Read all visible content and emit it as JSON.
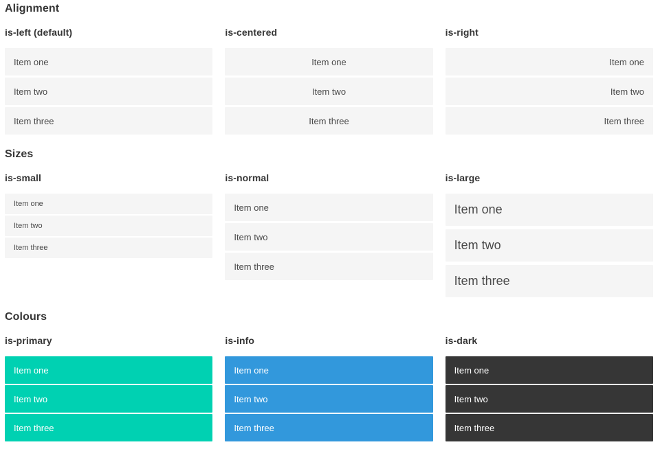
{
  "sections": [
    {
      "title": "Alignment",
      "groups": [
        {
          "label": "is-left (default)",
          "variant": "left",
          "items": [
            "Item one",
            "Item two",
            "Item three"
          ]
        },
        {
          "label": "is-centered",
          "variant": "centered",
          "items": [
            "Item one",
            "Item two",
            "Item three"
          ]
        },
        {
          "label": "is-right",
          "variant": "right",
          "items": [
            "Item one",
            "Item two",
            "Item three"
          ]
        }
      ]
    },
    {
      "title": "Sizes",
      "groups": [
        {
          "label": "is-small",
          "variant": "small",
          "items": [
            "Item one",
            "Item two",
            "Item three"
          ]
        },
        {
          "label": "is-normal",
          "variant": "normal",
          "items": [
            "Item one",
            "Item two",
            "Item three"
          ]
        },
        {
          "label": "is-large",
          "variant": "large",
          "items": [
            "Item one",
            "Item two",
            "Item three"
          ]
        }
      ]
    },
    {
      "title": "Colours",
      "groups": [
        {
          "label": "is-primary",
          "variant": "primary",
          "items": [
            "Item one",
            "Item two",
            "Item three"
          ]
        },
        {
          "label": "is-info",
          "variant": "info",
          "items": [
            "Item one",
            "Item two",
            "Item three"
          ]
        },
        {
          "label": "is-dark",
          "variant": "dark",
          "items": [
            "Item one",
            "Item two",
            "Item three"
          ]
        }
      ]
    }
  ],
  "colors": {
    "primary": "#00d1b2",
    "info": "#3298dc",
    "dark": "#363636",
    "item_background": "#f5f5f5",
    "item_text": "#4a4a4a",
    "heading_text": "#363636",
    "colour_item_text": "#ffffff"
  }
}
